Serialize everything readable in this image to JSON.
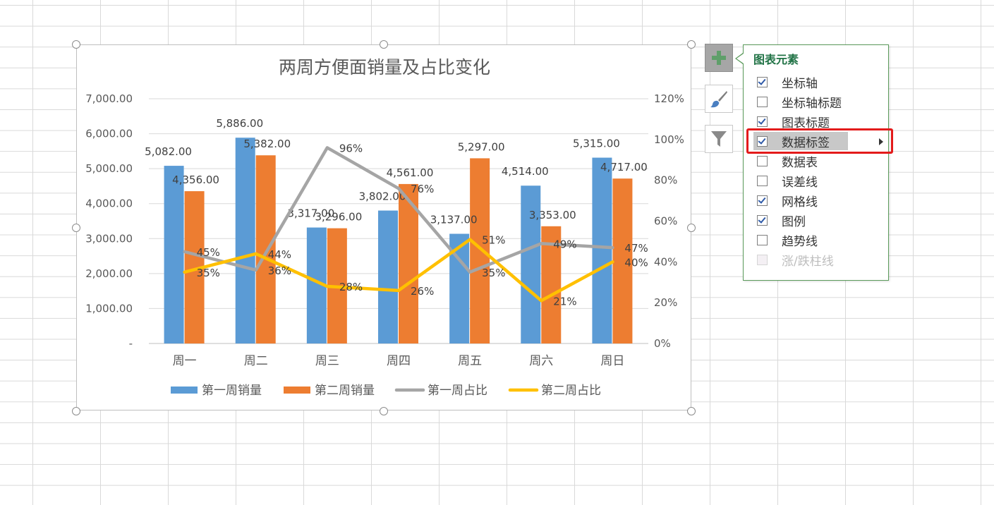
{
  "chart_data": {
    "type": "bar+line",
    "title": "两周方便面销量及占比变化",
    "categories": [
      "周一",
      "周二",
      "周三",
      "周四",
      "周五",
      "周六",
      "周日"
    ],
    "y_left": {
      "min": 0,
      "max": 7000,
      "ticks": [
        "-",
        "1,000.00",
        "2,000.00",
        "3,000.00",
        "4,000.00",
        "5,000.00",
        "6,000.00",
        "7,000.00"
      ]
    },
    "y_right": {
      "min": 0,
      "max": 1.2,
      "ticks": [
        "0%",
        "20%",
        "40%",
        "60%",
        "80%",
        "100%",
        "120%"
      ]
    },
    "grid": true,
    "legend_position": "bottom",
    "series": [
      {
        "name": "第一周销量",
        "kind": "bar",
        "axis": "left",
        "color": "#5b9bd5",
        "values": [
          5082,
          5886,
          3317,
          3802,
          3137,
          4514,
          5315
        ],
        "labels": [
          "5,082.00",
          "5,886.00",
          "3,317.00",
          "3,802.00",
          "3,137.00",
          "4,514.00",
          "5,315.00"
        ]
      },
      {
        "name": "第二周销量",
        "kind": "bar",
        "axis": "left",
        "color": "#ed7d31",
        "values": [
          4356,
          5382,
          3296,
          4561,
          5297,
          3353,
          4717
        ],
        "labels": [
          "4,356.00",
          "5,382.00",
          "3,296.00",
          "4,561.00",
          "5,297.00",
          "3,353.00",
          "4,717.00"
        ]
      },
      {
        "name": "第一周占比",
        "kind": "line",
        "axis": "right",
        "color": "#a5a5a5",
        "values": [
          0.45,
          0.36,
          0.96,
          0.76,
          0.35,
          0.49,
          0.47
        ],
        "labels": [
          "45%",
          "36%",
          "96%",
          "76%",
          "35%",
          "49%",
          "47%"
        ]
      },
      {
        "name": "第二周占比",
        "kind": "line",
        "axis": "right",
        "color": "#ffc000",
        "values": [
          0.35,
          0.44,
          0.28,
          0.26,
          0.51,
          0.21,
          0.4
        ],
        "labels": [
          "35%",
          "44%",
          "28%",
          "26%",
          "51%",
          "21%",
          "40%"
        ]
      }
    ]
  },
  "side_buttons": [
    {
      "icon": "plus-icon",
      "active": true
    },
    {
      "icon": "paintbrush-icon",
      "active": false
    },
    {
      "icon": "filter-icon",
      "active": false
    }
  ],
  "panel": {
    "title": "图表元素",
    "items": [
      {
        "label": "坐标轴",
        "checked": true
      },
      {
        "label": "坐标轴标题",
        "checked": false
      },
      {
        "label": "图表标题",
        "checked": true
      },
      {
        "label": "数据标签",
        "checked": true,
        "hover": true,
        "submenu": true
      },
      {
        "label": "数据表",
        "checked": false
      },
      {
        "label": "误差线",
        "checked": false
      },
      {
        "label": "网格线",
        "checked": true
      },
      {
        "label": "图例",
        "checked": true
      },
      {
        "label": "趋势线",
        "checked": false
      },
      {
        "label": "涨/跌柱线",
        "checked": false,
        "disabled": true
      }
    ]
  },
  "colors": {
    "accent_green": "#217346",
    "highlight_red": "#e31b1b"
  }
}
